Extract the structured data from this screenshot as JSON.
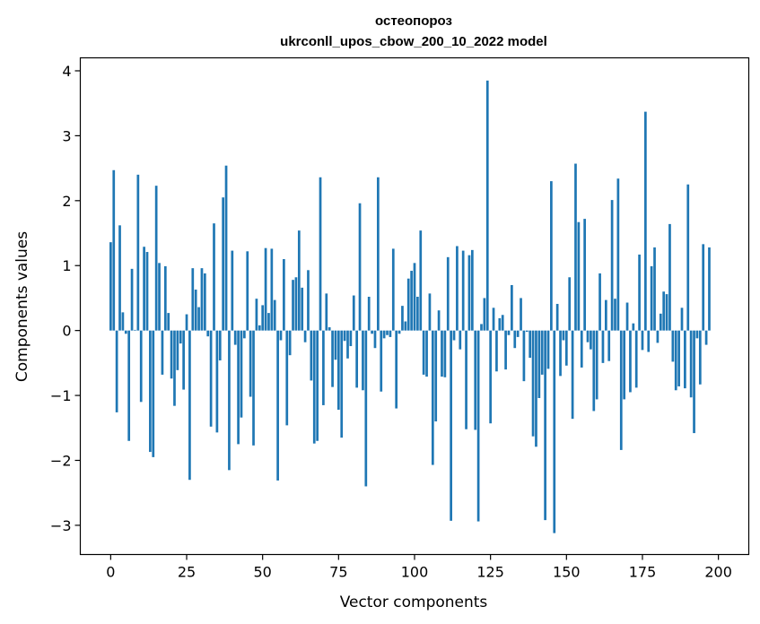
{
  "colors": {
    "bar": "#1f77b4",
    "axes": "#000000",
    "background": "#ffffff"
  },
  "chart_data": {
    "type": "bar",
    "title": "остеопороз",
    "subtitle": "ukrconll_upos_cbow_200_10_2022 model",
    "xlabel": "Vector components",
    "ylabel": "Components values",
    "xlim": [
      -10,
      210
    ],
    "ylim": [
      -3.45,
      4.2
    ],
    "xticks": [
      0,
      25,
      50,
      75,
      100,
      125,
      150,
      175,
      200
    ],
    "yticks": [
      -3,
      -2,
      -1,
      0,
      1,
      2,
      3,
      4
    ],
    "xtick_labels": [
      "0",
      "25",
      "50",
      "75",
      "100",
      "125",
      "150",
      "175",
      "200"
    ],
    "ytick_labels": [
      "−3",
      "−2",
      "−1",
      "0",
      "1",
      "2",
      "3",
      "4"
    ],
    "grid": false,
    "legend": "none",
    "values": [
      1.36,
      2.47,
      -1.26,
      1.62,
      0.28,
      -0.05,
      -1.7,
      0.95,
      0.01,
      2.4,
      -1.1,
      1.29,
      1.21,
      -1.87,
      -1.95,
      2.23,
      1.04,
      -0.68,
      0.99,
      0.27,
      -0.74,
      -1.16,
      -0.61,
      -0.2,
      -0.91,
      0.25,
      -2.3,
      0.96,
      0.63,
      0.36,
      0.96,
      0.88,
      -0.09,
      -1.48,
      1.65,
      -1.57,
      -0.46,
      2.05,
      2.54,
      -2.15,
      1.23,
      -0.22,
      -1.75,
      -1.34,
      -0.12,
      1.22,
      -1.02,
      -1.77,
      0.49,
      0.08,
      0.39,
      1.27,
      0.27,
      1.26,
      0.47,
      -2.31,
      -0.15,
      1.1,
      -1.46,
      -0.38,
      0.78,
      0.82,
      1.54,
      0.66,
      -0.18,
      0.93,
      -0.77,
      -1.74,
      -1.7,
      2.36,
      -1.15,
      0.57,
      0.05,
      -0.87,
      -0.45,
      -1.22,
      -1.65,
      -0.16,
      -0.43,
      -0.24,
      0.54,
      -0.88,
      1.96,
      -0.92,
      -2.4,
      0.52,
      -0.05,
      -0.27,
      2.36,
      -0.94,
      -0.12,
      -0.07,
      -0.1,
      1.26,
      -1.2,
      -0.05,
      0.38,
      0.14,
      0.8,
      0.92,
      1.04,
      0.52,
      1.54,
      -0.68,
      -0.71,
      0.57,
      -2.07,
      -1.4,
      0.31,
      -0.71,
      -0.72,
      1.13,
      -2.93,
      -0.15,
      1.3,
      -0.29,
      1.23,
      -1.52,
      1.16,
      1.24,
      -1.53,
      -2.94,
      0.1,
      0.5,
      3.85,
      -1.43,
      0.35,
      -0.63,
      0.19,
      0.24,
      -0.6,
      -0.07,
      0.7,
      -0.27,
      -0.1,
      0.5,
      -0.78,
      -0.02,
      -0.42,
      -1.63,
      -1.79,
      -1.04,
      -0.68,
      -2.92,
      -0.59,
      2.3,
      -3.12,
      0.41,
      -0.7,
      -0.15,
      -0.54,
      0.82,
      -1.36,
      2.57,
      1.67,
      -0.57,
      1.72,
      -0.18,
      -0.29,
      -1.24,
      -1.06,
      0.88,
      -0.5,
      0.47,
      -0.47,
      2.01,
      0.49,
      2.34,
      -1.84,
      -1.06,
      0.43,
      -0.95,
      0.11,
      -0.88,
      1.17,
      -0.3,
      3.37,
      -0.33,
      0.99,
      1.28,
      -0.19,
      0.26,
      0.6,
      0.56,
      1.64,
      -0.48,
      -0.92,
      -0.86,
      0.35,
      -0.89,
      2.25,
      -1.03,
      -1.58,
      -0.12,
      -0.83,
      1.33,
      -0.22,
      1.28
    ]
  }
}
